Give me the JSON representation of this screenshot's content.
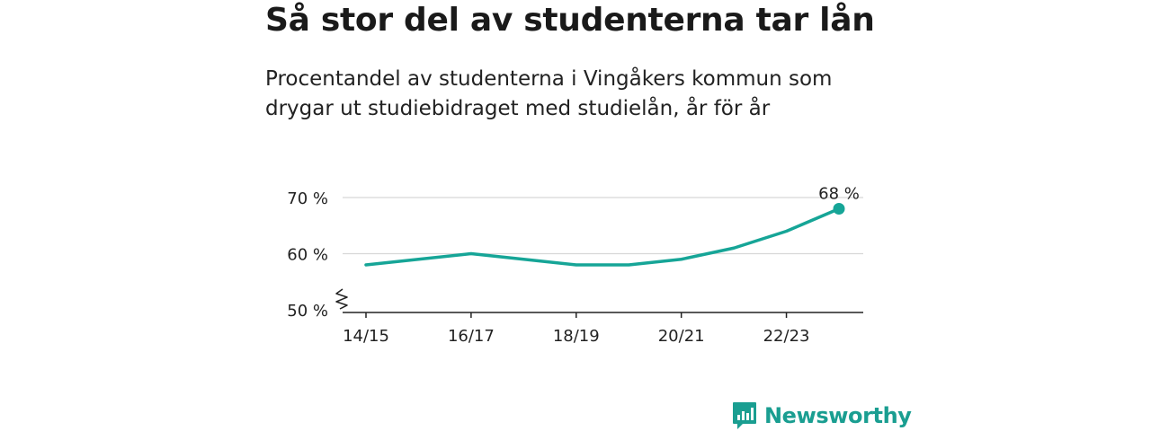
{
  "title": "Så stor del av studenterna tar lån",
  "subtitle": "Procentandel av studenterna i Vingåkers kommun som drygar ut studiebidraget med studielån, år för år",
  "brand": {
    "name": "Newsworthy",
    "icon": "newsworthy-logo-icon",
    "color": "#1a9e91"
  },
  "chart_data": {
    "type": "line",
    "title": "Så stor del av studenterna tar lån",
    "subtitle": "Procentandel av studenterna i Vingåkers kommun som drygar ut studiebidraget med studielån, år för år",
    "x": [
      "14/15",
      "15/16",
      "16/17",
      "17/18",
      "18/19",
      "19/20",
      "20/21",
      "21/22",
      "22/23",
      "23/24"
    ],
    "x_tick_labels": [
      "14/15",
      "16/17",
      "18/19",
      "20/21",
      "22/23"
    ],
    "series": [
      {
        "values": [
          58,
          59,
          60,
          59,
          58,
          58,
          59,
          61,
          64,
          68
        ],
        "color": "#16a597"
      }
    ],
    "y_ticks": [
      50,
      60,
      70
    ],
    "y_tick_labels": [
      "50 %",
      "60 %",
      "70 %"
    ],
    "ylim": [
      50,
      70
    ],
    "y_axis_break": true,
    "grid": true,
    "end_label": "68 %",
    "xlabel": "",
    "ylabel": ""
  }
}
